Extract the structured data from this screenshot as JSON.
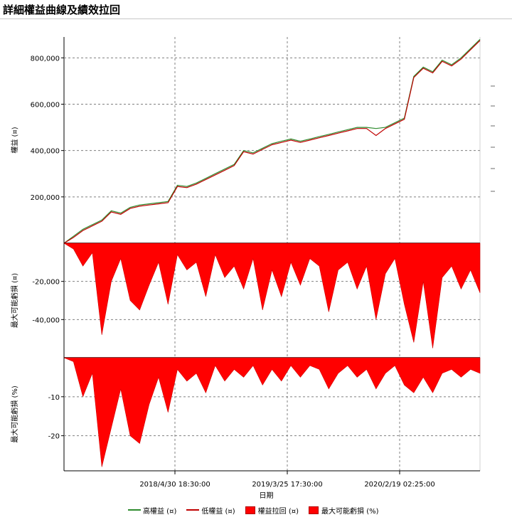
{
  "title": "詳細權益曲線及績效拉回",
  "chart_data": [
    {
      "type": "line",
      "panel": "equity",
      "ylabel": "權益 (¤)",
      "yticks": [
        "200,000",
        "400,000",
        "600,000",
        "800,000"
      ],
      "ylim": [
        0,
        890000
      ],
      "grid": true,
      "series": [
        {
          "name": "高權益 (¤)",
          "color": "#2e8b2e",
          "values": [
            0,
            30000,
            60000,
            80000,
            100000,
            140000,
            130000,
            155000,
            165000,
            170000,
            175000,
            180000,
            250000,
            245000,
            260000,
            280000,
            300000,
            320000,
            340000,
            400000,
            390000,
            410000,
            430000,
            440000,
            450000,
            440000,
            450000,
            460000,
            470000,
            480000,
            490000,
            500000,
            500000,
            495000,
            500000,
            520000,
            540000,
            720000,
            760000,
            740000,
            790000,
            770000,
            800000,
            840000,
            880000
          ]
        },
        {
          "name": "低權益 (¤)",
          "color": "#c00000",
          "values": [
            0,
            25000,
            55000,
            75000,
            95000,
            135000,
            125000,
            150000,
            160000,
            165000,
            170000,
            175000,
            245000,
            240000,
            255000,
            275000,
            295000,
            315000,
            335000,
            395000,
            385000,
            405000,
            425000,
            435000,
            445000,
            435000,
            445000,
            455000,
            465000,
            475000,
            485000,
            495000,
            495000,
            465000,
            495000,
            515000,
            535000,
            715000,
            755000,
            735000,
            785000,
            765000,
            795000,
            835000,
            875000
          ]
        }
      ]
    },
    {
      "type": "area",
      "panel": "drawdown_value",
      "ylabel": "最大可能虧損 (¤)",
      "yticks": [
        "-20,000",
        "-40,000"
      ],
      "ylim": [
        -60000,
        0
      ],
      "grid": true,
      "series": [
        {
          "name": "權益拉回 (¤)",
          "color": "#ff0000",
          "values": [
            0,
            -3000,
            -12000,
            -5000,
            -48000,
            -20000,
            -8000,
            -30000,
            -35000,
            -22000,
            -10000,
            -32000,
            -6000,
            -14000,
            -10000,
            -28000,
            -6000,
            -18000,
            -12000,
            -24000,
            -8000,
            -35000,
            -14000,
            -28000,
            -10000,
            -22000,
            -8000,
            -12000,
            -36000,
            -14000,
            -10000,
            -24000,
            -12000,
            -40000,
            -16000,
            -8000,
            -32000,
            -52000,
            -20000,
            -55000,
            -18000,
            -12000,
            -24000,
            -14000,
            -26000
          ]
        }
      ]
    },
    {
      "type": "area",
      "panel": "drawdown_pct",
      "ylabel": "最大可能虧損 (%)",
      "yticks": [
        "-10",
        "-20"
      ],
      "ylim": [
        -29,
        0
      ],
      "grid": true,
      "series": [
        {
          "name": "最大可能虧損 (%)",
          "color": "#ff0000",
          "values": [
            0,
            -1,
            -10,
            -4,
            -28,
            -18,
            -8,
            -20,
            -22,
            -12,
            -5,
            -14,
            -3,
            -6,
            -4,
            -9,
            -2,
            -6,
            -3,
            -5,
            -2,
            -7,
            -3,
            -6,
            -2,
            -5,
            -2,
            -3,
            -8,
            -4,
            -2,
            -5,
            -3,
            -8,
            -4,
            -2,
            -7,
            -9,
            -5,
            -9,
            -4,
            -3,
            -5,
            -3,
            -4
          ]
        }
      ]
    }
  ],
  "x_axis": {
    "label": "日期",
    "ticks": [
      "2018/4/30 18:30:00",
      "2019/3/25 17:30:00",
      "2020/2/19 02:25:00"
    ],
    "tick_index": [
      13,
      22.5,
      33.5
    ],
    "points": 45
  },
  "legend": [
    {
      "label": "高權益 (¤)",
      "kind": "line",
      "color": "#2e8b2e"
    },
    {
      "label": "低權益 (¤)",
      "kind": "line",
      "color": "#c00000"
    },
    {
      "label": "權益拉回 (¤)",
      "kind": "swatch",
      "color": "#ff0000"
    },
    {
      "label": "最大可能虧損 (%)",
      "kind": "swatch",
      "color": "#ff0000"
    }
  ]
}
